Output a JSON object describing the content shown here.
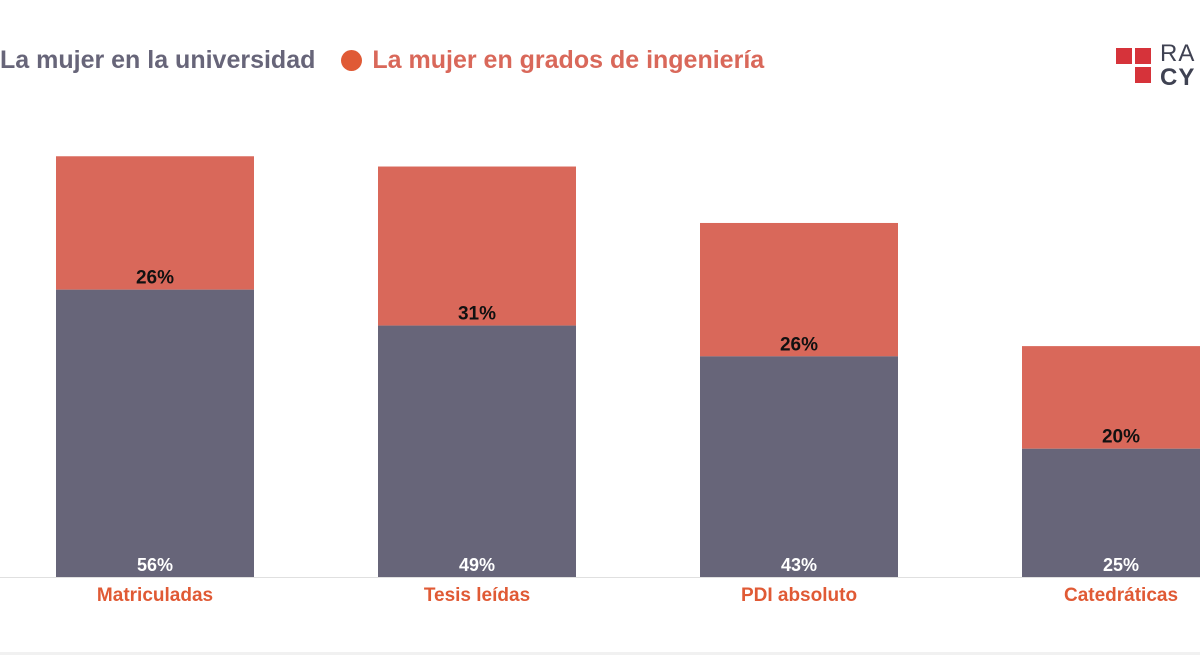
{
  "legend": {
    "university_label": "La mujer en la universidad",
    "engineering_label": "La mujer en grados de ingeniería"
  },
  "logo": {
    "line1": "RA",
    "line2": "CY"
  },
  "colors": {
    "university": "#676579",
    "engineering": "#d9685a",
    "category_label": "#e05a35",
    "logo_red": "#d6333a",
    "axis_line": "#e0e0e0"
  },
  "chart_data": {
    "type": "bar",
    "stacked": true,
    "title": "",
    "xlabel": "",
    "ylabel": "",
    "categories": [
      "Matriculadas",
      "Tesis leídas",
      "PDI absoluto",
      "Catedráticas"
    ],
    "series": [
      {
        "name": "La mujer en la universidad",
        "values": [
          56,
          49,
          43,
          25
        ],
        "labels": [
          "56%",
          "49%",
          "43%",
          "25%"
        ]
      },
      {
        "name": "La mujer en grados de ingeniería",
        "values": [
          26,
          31,
          26,
          20
        ],
        "labels": [
          "26%",
          "31%",
          "26%",
          "20%"
        ]
      }
    ],
    "ylim": [
      0,
      84
    ],
    "grid": false,
    "legend_position": "top-left"
  }
}
